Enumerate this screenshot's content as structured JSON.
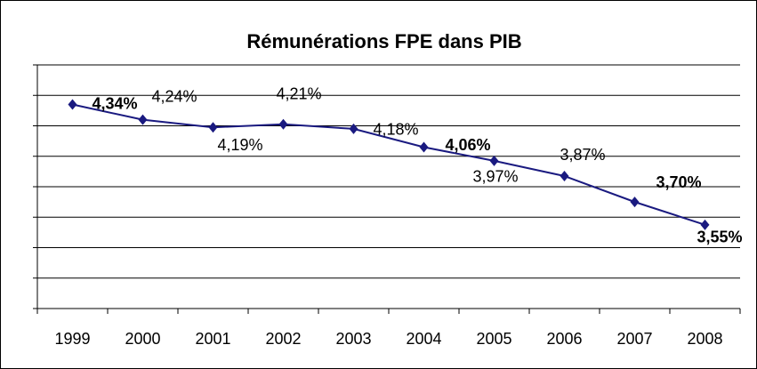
{
  "chart_data": {
    "type": "line",
    "title": "Rémunérations FPE dans PIB",
    "categories": [
      "1999",
      "2000",
      "2001",
      "2002",
      "2003",
      "2004",
      "2005",
      "2006",
      "2007",
      "2008"
    ],
    "values": [
      4.34,
      4.24,
      4.19,
      4.21,
      4.18,
      4.06,
      3.97,
      3.87,
      3.7,
      3.55
    ],
    "value_labels": [
      "4,34%",
      "4,24%",
      "4,19%",
      "4,21%",
      "4,18%",
      "4,06%",
      "3,97%",
      "3,87%",
      "3,70%",
      "3,55%"
    ],
    "color": "#1a1a80",
    "ylim": [
      3.0,
      4.6
    ],
    "yticks": [
      3.0,
      3.2,
      3.4,
      3.6,
      3.8,
      4.0,
      4.2,
      4.4,
      4.6
    ],
    "grid": true
  }
}
